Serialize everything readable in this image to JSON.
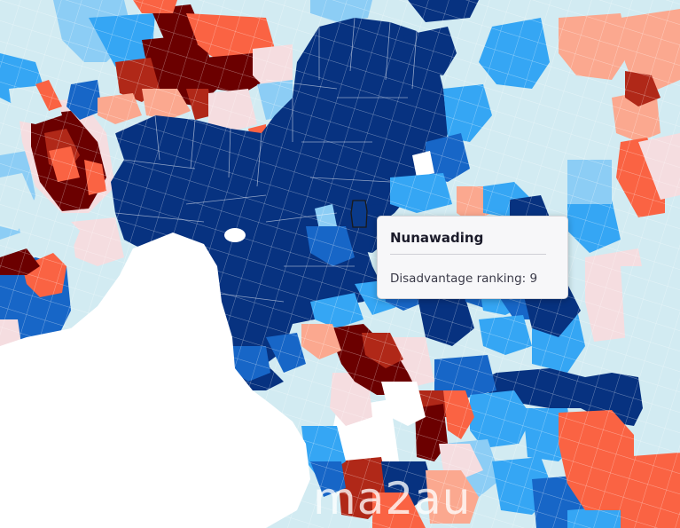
{
  "tooltip": {
    "title": "Nunawading",
    "label": "Disadvantage ranking: 9"
  },
  "watermark": "ma2au",
  "colors": {
    "darkest_red": "#6b0000",
    "dark_red": "#b02818",
    "red_orange": "#fa6343",
    "salmon": "#fba88f",
    "pale_pink": "#f5dde0",
    "pale_blue": "#d2ebf2",
    "light_blue": "#8ccdf5",
    "sky_blue": "#35a6f4",
    "mid_blue": "#1766c7",
    "navy": "#073280",
    "water": "#ffffff"
  },
  "highlighted_region": "Nunawading"
}
